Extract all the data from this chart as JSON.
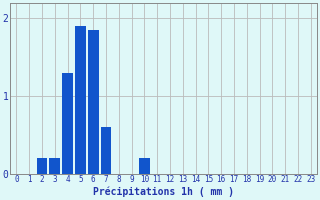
{
  "values": [
    0,
    0,
    0.2,
    0.2,
    1.3,
    1.9,
    1.85,
    0.6,
    0,
    0,
    0.2,
    0,
    0,
    0,
    0,
    0,
    0,
    0,
    0,
    0,
    0,
    0,
    0,
    0
  ],
  "categories": [
    0,
    1,
    2,
    3,
    4,
    5,
    6,
    7,
    8,
    9,
    10,
    11,
    12,
    13,
    14,
    15,
    16,
    17,
    18,
    19,
    20,
    21,
    22,
    23
  ],
  "bar_color": "#1155cc",
  "background_color": "#dff8f8",
  "grid_color": "#bbbbbb",
  "xlabel": "Précipitations 1h ( mm )",
  "xlabel_fontsize": 7,
  "yticks": [
    0,
    1,
    2
  ],
  "ylim": [
    0,
    2.2
  ],
  "xlim": [
    -0.5,
    23.5
  ],
  "xtick_fontsize": 5.5,
  "ytick_fontsize": 7,
  "tick_color": "#2233aa",
  "figsize": [
    3.2,
    2.0
  ],
  "dpi": 100
}
